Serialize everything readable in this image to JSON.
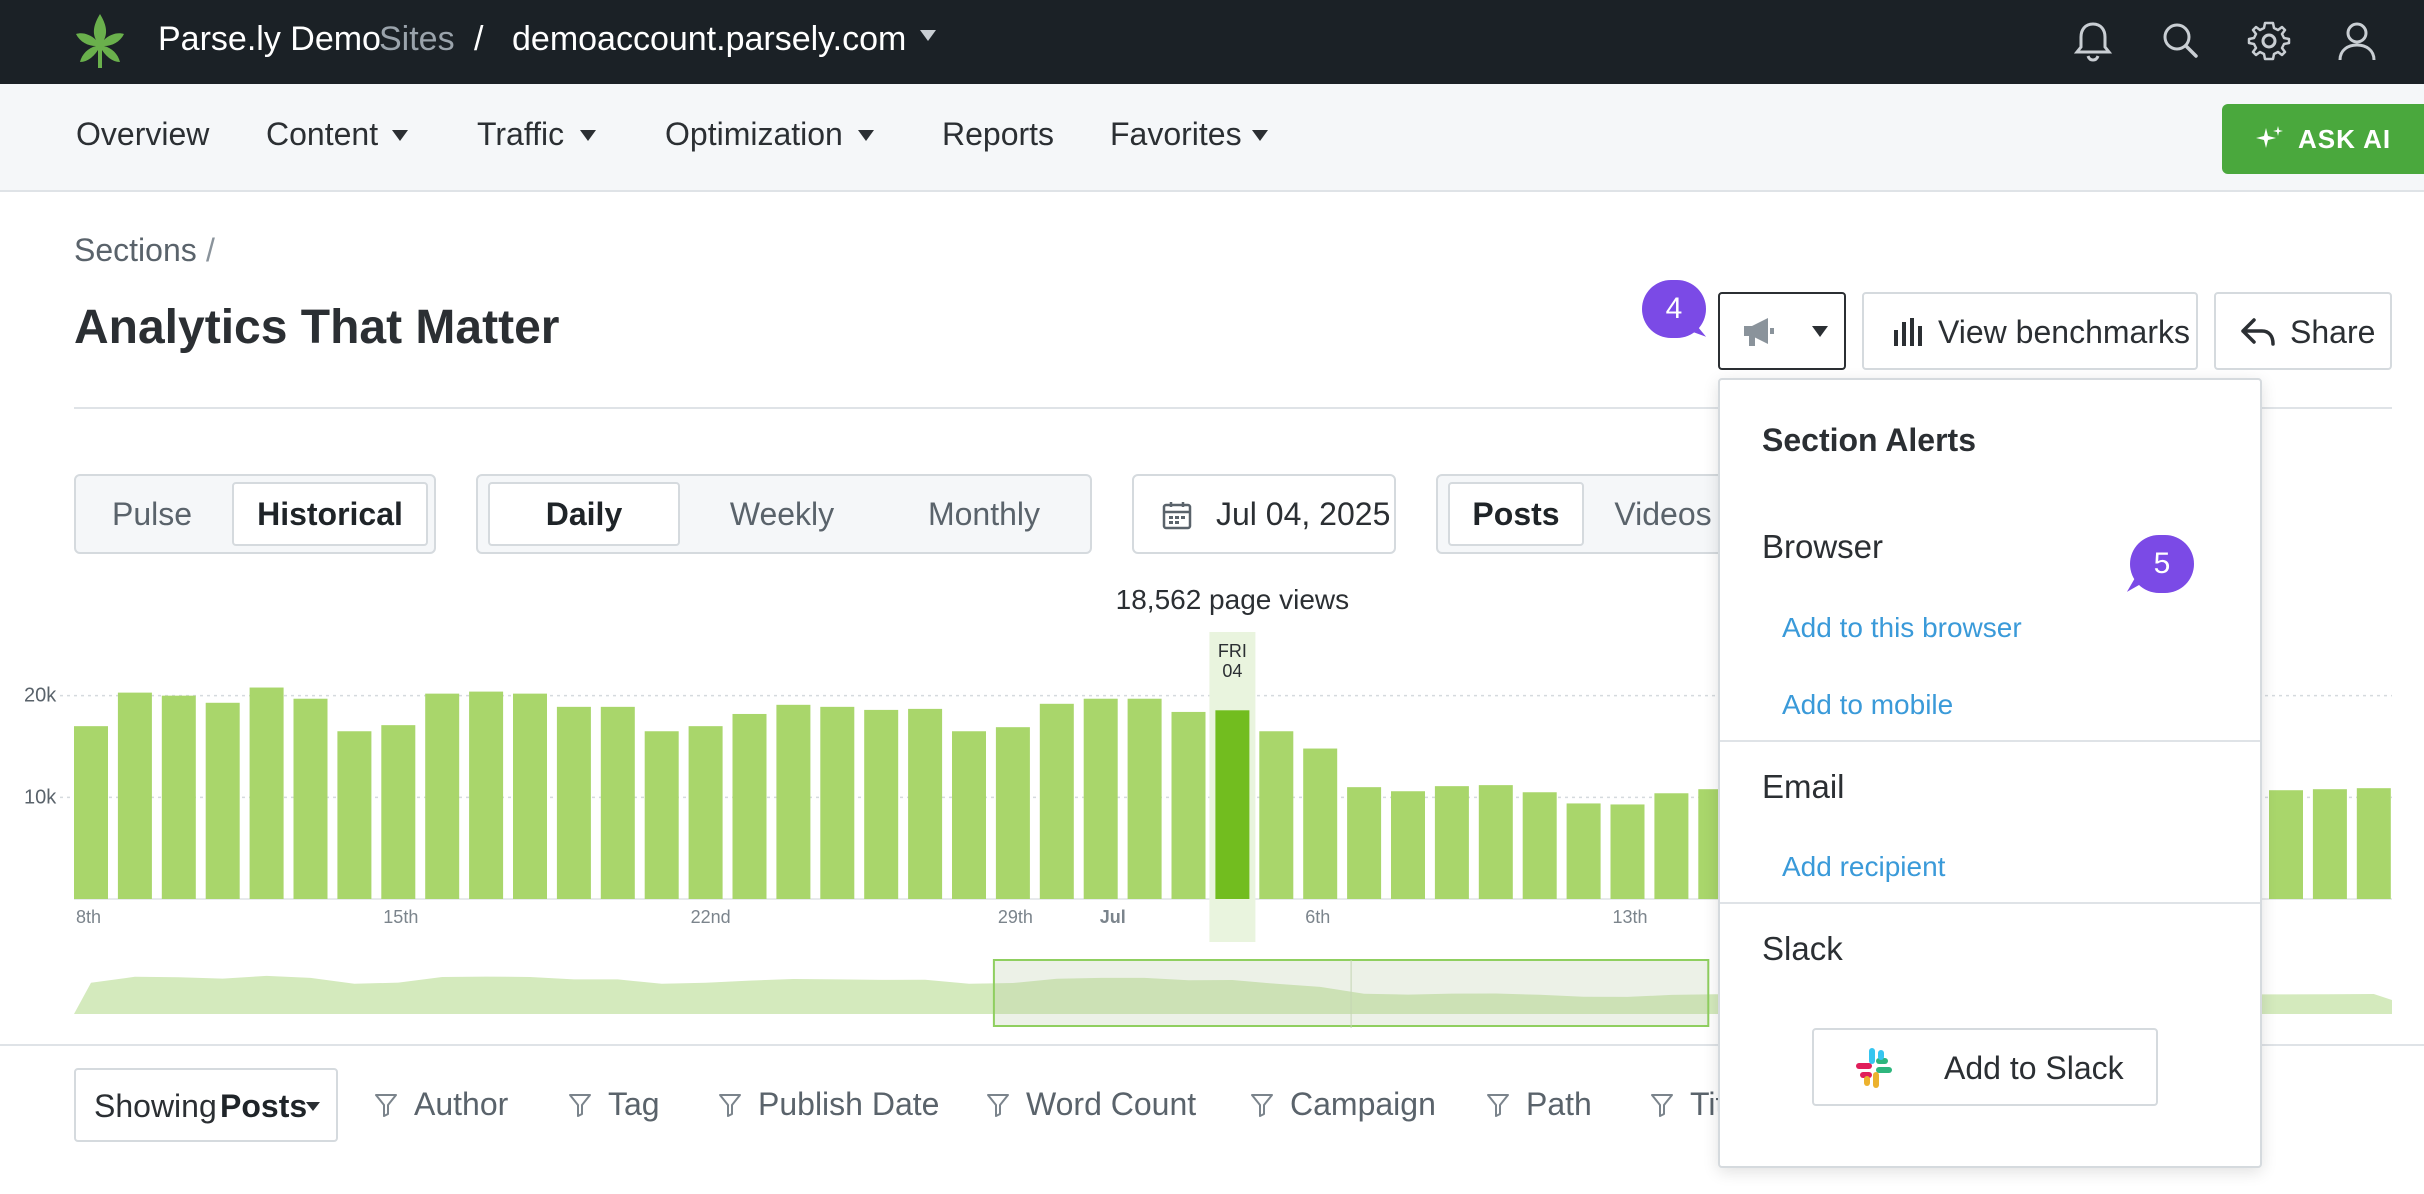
{
  "topbar": {
    "brand": "Parse.ly Demo",
    "sites": "Sites",
    "separator": "/",
    "domain": "demoaccount.parsely.com",
    "icons": [
      "bell-icon",
      "search-icon",
      "gear-icon",
      "user-icon"
    ]
  },
  "nav": {
    "items": [
      {
        "label": "Overview",
        "dropdown": false
      },
      {
        "label": "Content",
        "dropdown": true
      },
      {
        "label": "Traffic",
        "dropdown": true
      },
      {
        "label": "Optimization",
        "dropdown": true
      },
      {
        "label": "Reports",
        "dropdown": false
      },
      {
        "label": "Favorites",
        "dropdown": true
      }
    ],
    "ask_ai": "ASK AI"
  },
  "header": {
    "breadcrumb": "Sections",
    "breadcrumb_sep": "/",
    "title": "Analytics That Matter",
    "view_benchmarks": "View benchmarks",
    "share": "Share",
    "step_4": "4",
    "step_5": "5"
  },
  "controls": {
    "mode": {
      "options": [
        "Pulse",
        "Historical"
      ],
      "selected": "Historical"
    },
    "interval": {
      "options": [
        "Daily",
        "Weekly",
        "Monthly"
      ],
      "selected": "Daily"
    },
    "date": "Jul 04, 2025",
    "content_type": {
      "options": [
        "Posts",
        "Videos"
      ],
      "selected": "Posts"
    }
  },
  "chart_data": {
    "type": "bar",
    "tooltip": "18,562 page views",
    "highlight_day": "FRI",
    "highlight_date": "04",
    "highlight_index": 26,
    "y_ticks": [
      "20k",
      "10k"
    ],
    "ylim": [
      0,
      24000
    ],
    "x_labels": [
      {
        "index": 0,
        "label": "8th",
        "bold": false
      },
      {
        "index": 7,
        "label": "15th",
        "bold": false
      },
      {
        "index": 14,
        "label": "22nd",
        "bold": false
      },
      {
        "index": 21,
        "label": "29th",
        "bold": false
      },
      {
        "index": 23,
        "label": "Jul",
        "bold": true
      },
      {
        "index": 28,
        "label": "6th",
        "bold": false
      },
      {
        "index": 35,
        "label": "13th",
        "bold": false
      }
    ],
    "values": [
      17000,
      20300,
      20000,
      19300,
      20800,
      19700,
      16500,
      17100,
      20200,
      20400,
      20200,
      18900,
      18900,
      16500,
      17000,
      18200,
      19100,
      18900,
      18600,
      18700,
      16500,
      16900,
      19200,
      19700,
      19700,
      18400,
      18562,
      16500,
      14800,
      11000,
      10600,
      11100,
      11200,
      10500,
      9400,
      9300,
      10400,
      10800,
      10700,
      10900,
      10800,
      10600,
      10500,
      10700,
      10800,
      10900,
      11000,
      10600,
      10500,
      10700,
      10700,
      10800,
      10900
    ],
    "navigator_start": 21,
    "navigator_end": 37
  },
  "filters": {
    "showing_prefix": "Showing",
    "showing_value": "Posts",
    "items": [
      "Author",
      "Tag",
      "Publish Date",
      "Word Count",
      "Campaign",
      "Path",
      "Title"
    ]
  },
  "alerts_menu": {
    "title": "Section Alerts",
    "browser": "Browser",
    "add_browser": "Add to this browser",
    "add_mobile": "Add to mobile",
    "email": "Email",
    "add_recipient": "Add recipient",
    "slack": "Slack",
    "add_slack": "Add to Slack"
  },
  "colors": {
    "topbar": "#1b2126",
    "bar": "#a9d66b",
    "bar_active": "#72bd1f",
    "ask_ai": "#4aa83d",
    "link": "#3a9ad9",
    "bubble": "#7b4ae6"
  }
}
